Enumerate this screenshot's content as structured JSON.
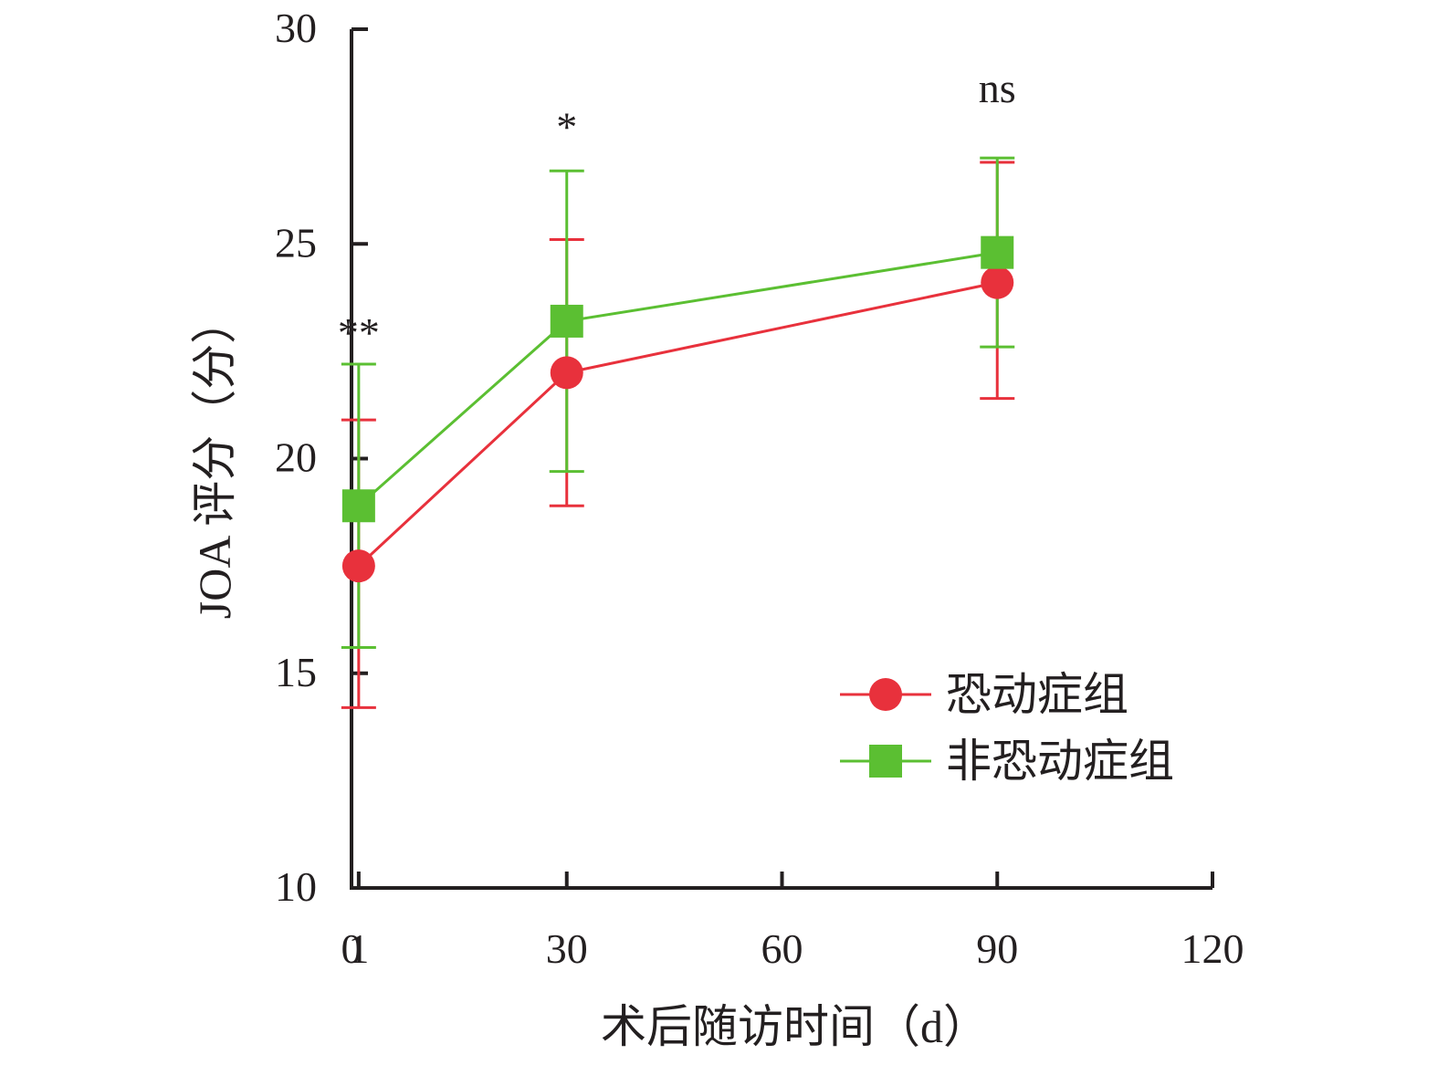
{
  "chart_data": {
    "type": "line",
    "title": "",
    "xlabel": "术后随访时间（d）",
    "ylabel": "JOA 评分（分）",
    "xlim": [
      0,
      120
    ],
    "ylim": [
      10,
      30
    ],
    "xticks": [
      0,
      1,
      30,
      60,
      90,
      120
    ],
    "yticks": [
      10,
      15,
      20,
      25,
      30
    ],
    "x": [
      1,
      30,
      90
    ],
    "grid": false,
    "legend_position": "lower-right",
    "series": [
      {
        "name": "恐动症组",
        "marker": "circle",
        "color": "#e8313c",
        "values": [
          17.5,
          22.0,
          24.1
        ],
        "error_upper": [
          20.9,
          25.1,
          26.9
        ],
        "error_lower": [
          14.2,
          18.9,
          21.4
        ]
      },
      {
        "name": "非恐动症组",
        "marker": "square",
        "color": "#5bbf32",
        "values": [
          18.9,
          23.2,
          24.8
        ],
        "error_upper": [
          22.2,
          26.7,
          27.0
        ],
        "error_lower": [
          15.6,
          19.7,
          22.6
        ]
      }
    ],
    "annotations": [
      {
        "x": 1,
        "y": 22.6,
        "text": "**"
      },
      {
        "x": 30,
        "y": 27.4,
        "text": "*"
      },
      {
        "x": 90,
        "y": 28.3,
        "text": "ns"
      }
    ]
  }
}
